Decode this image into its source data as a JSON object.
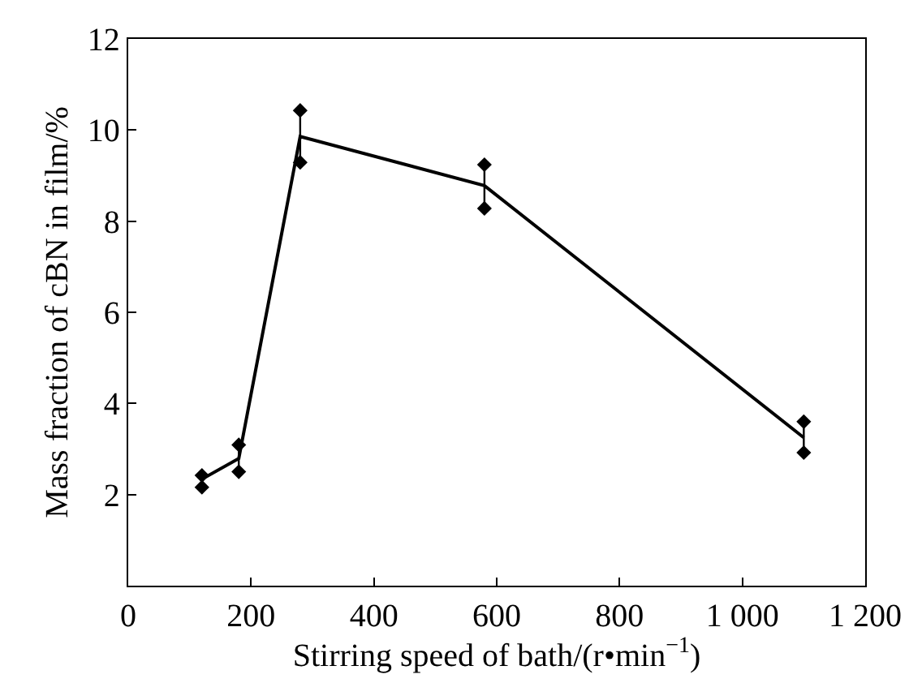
{
  "chart_data": {
    "type": "line",
    "xlabel": "Stirring speed of bath/(r•min$^{−1}$)",
    "ylabel": "Mass fraction of cBN in film/%",
    "x": [
      120,
      180,
      280,
      580,
      1100
    ],
    "series": [
      {
        "color": "#000000",
        "marker": "none",
        "line_style": "solid",
        "values": [
          2.34,
          2.79,
          9.86,
          8.78,
          3.25
        ],
        "errors": [
          [
            2.16,
            2.42
          ],
          [
            2.5,
            3.09
          ],
          [
            9.29,
            10.43
          ],
          [
            8.28,
            9.24
          ],
          [
            2.92,
            3.6
          ]
        ]
      },
      {
        "type": "scatter",
        "color": "#000000",
        "marker": "diamond",
        "x": [
          120,
          120,
          180,
          180,
          280,
          280,
          580,
          580,
          1100,
          1100
        ],
        "values": [
          2.42,
          2.16,
          3.09,
          2.5,
          10.43,
          9.29,
          9.24,
          8.28,
          3.6,
          2.92
        ]
      }
    ],
    "xlim": [
      0,
      1200
    ],
    "xticks": [
      0,
      200,
      400,
      600,
      800,
      {
        "value": 1000,
        "label": "1 000"
      },
      {
        "value": 1200,
        "label": "1 200"
      }
    ],
    "ylim": [
      0,
      12
    ],
    "yticks": [
      2,
      4,
      6,
      8,
      10,
      12
    ]
  }
}
